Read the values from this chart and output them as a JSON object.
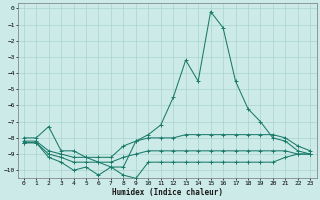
{
  "xlabel": "Humidex (Indice chaleur)",
  "xlim": [
    -0.5,
    23.5
  ],
  "ylim": [
    -10.5,
    0.3
  ],
  "yticks": [
    0,
    -1,
    -2,
    -3,
    -4,
    -5,
    -6,
    -7,
    -8,
    -9,
    -10
  ],
  "xticks": [
    0,
    1,
    2,
    3,
    4,
    5,
    6,
    7,
    8,
    9,
    10,
    11,
    12,
    13,
    14,
    15,
    16,
    17,
    18,
    19,
    20,
    21,
    22,
    23
  ],
  "bg_color": "#cceae7",
  "grid_color": "#aad4d0",
  "line_color": "#1a7a6a",
  "main_x": [
    0,
    1,
    2,
    3,
    4,
    5,
    6,
    7,
    8,
    9,
    10,
    11,
    12,
    13,
    14,
    15,
    16,
    17,
    18,
    19,
    20,
    21,
    22,
    23
  ],
  "main_y": [
    -8.0,
    -8.0,
    -7.3,
    -8.8,
    -8.8,
    -9.2,
    -9.5,
    -9.8,
    -9.8,
    -8.2,
    -7.8,
    -7.2,
    -5.5,
    -3.2,
    -4.5,
    -0.2,
    -1.2,
    -4.5,
    -6.2,
    -7.0,
    -8.0,
    -8.2,
    -8.8,
    -9.0
  ],
  "line2_x": [
    0,
    1,
    2,
    3,
    4,
    5,
    6,
    7,
    8,
    9,
    10,
    11,
    12,
    13,
    14,
    15,
    16,
    17,
    18,
    19,
    20,
    21,
    22,
    23
  ],
  "line2_y": [
    -8.2,
    -8.2,
    -8.8,
    -9.0,
    -9.2,
    -9.2,
    -9.2,
    -9.2,
    -8.5,
    -8.2,
    -8.0,
    -8.0,
    -8.0,
    -7.8,
    -7.8,
    -7.8,
    -7.8,
    -7.8,
    -7.8,
    -7.8,
    -7.8,
    -8.0,
    -8.5,
    -8.8
  ],
  "line3_x": [
    0,
    1,
    2,
    3,
    4,
    5,
    6,
    7,
    8,
    9,
    10,
    11,
    12,
    13,
    14,
    15,
    16,
    17,
    18,
    19,
    20,
    21,
    22,
    23
  ],
  "line3_y": [
    -8.3,
    -8.3,
    -9.0,
    -9.2,
    -9.5,
    -9.5,
    -9.5,
    -9.5,
    -9.2,
    -9.0,
    -8.8,
    -8.8,
    -8.8,
    -8.8,
    -8.8,
    -8.8,
    -8.8,
    -8.8,
    -8.8,
    -8.8,
    -8.8,
    -8.8,
    -9.0,
    -9.0
  ],
  "line4_x": [
    0,
    1,
    2,
    3,
    4,
    5,
    6,
    7,
    8,
    9,
    10,
    11,
    12,
    13,
    14,
    15,
    16,
    17,
    18,
    19,
    20,
    21,
    22,
    23
  ],
  "line4_y": [
    -8.3,
    -8.3,
    -9.2,
    -9.5,
    -10.0,
    -9.8,
    -10.3,
    -9.8,
    -10.3,
    -10.5,
    -9.5,
    -9.5,
    -9.5,
    -9.5,
    -9.5,
    -9.5,
    -9.5,
    -9.5,
    -9.5,
    -9.5,
    -9.5,
    -9.2,
    -9.0,
    -9.0
  ]
}
